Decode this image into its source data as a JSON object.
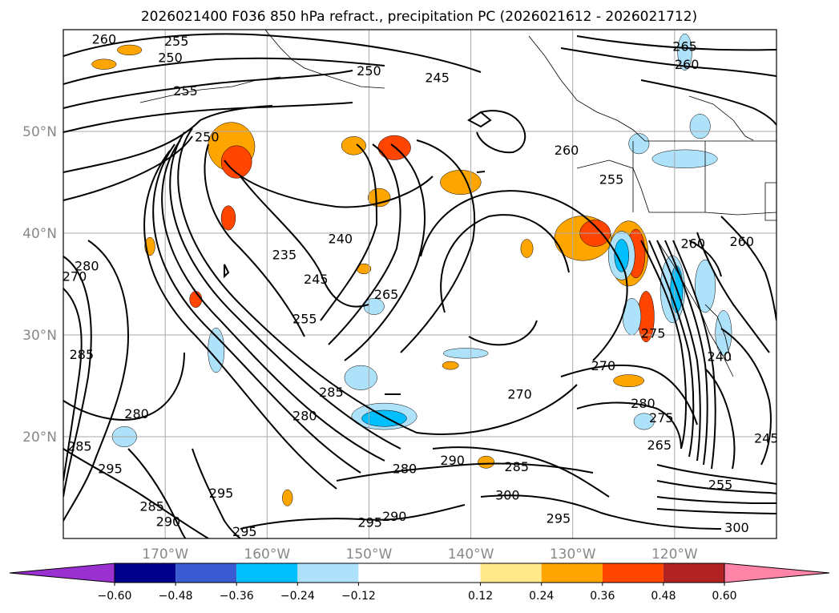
{
  "chart_data": {
    "type": "contour-map",
    "title": "2026021400 F036 850 hPa refract., precipitation PC (2026021612 - 2026021712)",
    "lon_range": [
      -180,
      -110
    ],
    "lat_range": [
      10,
      60
    ],
    "x_ticks": [
      {
        "lon": -170,
        "label": "170°W"
      },
      {
        "lon": -160,
        "label": "160°W"
      },
      {
        "lon": -150,
        "label": "150°W"
      },
      {
        "lon": -140,
        "label": "140°W"
      },
      {
        "lon": -130,
        "label": "130°W"
      },
      {
        "lon": -120,
        "label": "120°W"
      }
    ],
    "y_ticks": [
      {
        "lat": 20,
        "label": "20°N"
      },
      {
        "lat": 30,
        "label": "30°N"
      },
      {
        "lat": 40,
        "label": "40°N"
      },
      {
        "lat": 50,
        "label": "50°N"
      }
    ],
    "colorbar": {
      "orientation": "horizontal",
      "extend": "both",
      "boundaries": [
        -0.72,
        -0.6,
        -0.48,
        -0.36,
        -0.24,
        -0.12,
        0.12,
        0.24,
        0.36,
        0.48,
        0.6,
        0.72
      ],
      "colors": [
        "#9b30d0",
        "#00008b",
        "#3a5bd1",
        "#00bfff",
        "#aee2fb",
        "#ffffff",
        "#ffe98a",
        "#ffa500",
        "#ff4500",
        "#b22222",
        "#ff85a8"
      ],
      "tick_labels": [
        "−0.60",
        "−0.48",
        "−0.36",
        "−0.24",
        "−0.12",
        "0.12",
        "0.24",
        "0.36",
        "0.48",
        "0.60"
      ]
    },
    "contour_labels": [
      {
        "text": "260",
        "lon": -176.0,
        "lat": 59.1
      },
      {
        "text": "255",
        "lon": -168.9,
        "lat": 58.9
      },
      {
        "text": "250",
        "lon": -169.5,
        "lat": 57.3
      },
      {
        "text": "250",
        "lon": -150.0,
        "lat": 56.0
      },
      {
        "text": "245",
        "lon": -143.3,
        "lat": 55.3
      },
      {
        "text": "255",
        "lon": -168.0,
        "lat": 54.0
      },
      {
        "text": "250",
        "lon": -165.9,
        "lat": 49.5
      },
      {
        "text": "265",
        "lon": -119.0,
        "lat": 58.4
      },
      {
        "text": "260",
        "lon": -118.8,
        "lat": 56.6
      },
      {
        "text": "260",
        "lon": -130.6,
        "lat": 48.2
      },
      {
        "text": "255",
        "lon": -126.2,
        "lat": 45.3
      },
      {
        "text": "235",
        "lon": -158.3,
        "lat": 37.9
      },
      {
        "text": "240",
        "lon": -152.8,
        "lat": 39.5
      },
      {
        "text": "245",
        "lon": -155.2,
        "lat": 35.5
      },
      {
        "text": "265",
        "lon": -148.3,
        "lat": 34.0
      },
      {
        "text": "255",
        "lon": -156.3,
        "lat": 31.6
      },
      {
        "text": "260",
        "lon": -118.2,
        "lat": 39.0
      },
      {
        "text": "260",
        "lon": -113.4,
        "lat": 39.2
      },
      {
        "text": "270",
        "lon": -178.9,
        "lat": 35.8
      },
      {
        "text": "280",
        "lon": -177.7,
        "lat": 36.8
      },
      {
        "text": "285",
        "lon": -178.2,
        "lat": 28.1
      },
      {
        "text": "275",
        "lon": -122.1,
        "lat": 30.2
      },
      {
        "text": "240",
        "lon": -115.6,
        "lat": 27.9
      },
      {
        "text": "270",
        "lon": -127.0,
        "lat": 27.0
      },
      {
        "text": "270",
        "lon": -135.2,
        "lat": 24.2
      },
      {
        "text": "280",
        "lon": -123.1,
        "lat": 23.3
      },
      {
        "text": "275",
        "lon": -121.3,
        "lat": 21.9
      },
      {
        "text": "285",
        "lon": -153.7,
        "lat": 24.4
      },
      {
        "text": "280",
        "lon": -156.3,
        "lat": 22.1
      },
      {
        "text": "280",
        "lon": -172.8,
        "lat": 22.3
      },
      {
        "text": "285",
        "lon": -178.4,
        "lat": 19.1
      },
      {
        "text": "265",
        "lon": -121.5,
        "lat": 19.2
      },
      {
        "text": "245",
        "lon": -111.0,
        "lat": 19.9
      },
      {
        "text": "295",
        "lon": -175.4,
        "lat": 16.9
      },
      {
        "text": "295",
        "lon": -164.5,
        "lat": 14.5
      },
      {
        "text": "285",
        "lon": -171.3,
        "lat": 13.2
      },
      {
        "text": "280",
        "lon": -146.5,
        "lat": 16.9
      },
      {
        "text": "290",
        "lon": -141.8,
        "lat": 17.7
      },
      {
        "text": "285",
        "lon": -135.5,
        "lat": 17.1
      },
      {
        "text": "300",
        "lon": -136.4,
        "lat": 14.3
      },
      {
        "text": "290",
        "lon": -169.7,
        "lat": 11.7
      },
      {
        "text": "295",
        "lon": -162.2,
        "lat": 10.7
      },
      {
        "text": "295",
        "lon": -149.9,
        "lat": 11.6
      },
      {
        "text": "290",
        "lon": -147.5,
        "lat": 12.2
      },
      {
        "text": "295",
        "lon": -131.4,
        "lat": 12.0
      },
      {
        "text": "255",
        "lon": -115.5,
        "lat": 15.3
      },
      {
        "text": "300",
        "lon": -113.9,
        "lat": 11.1
      }
    ],
    "precip_patches": [
      {
        "lon": -163.5,
        "lat": 48.5,
        "rx": 2.3,
        "ry": 2.4,
        "level": 0.24
      },
      {
        "lon": -163.0,
        "lat": 47.0,
        "rx": 1.5,
        "ry": 1.6,
        "level": 0.36
      },
      {
        "lon": -147.5,
        "lat": 48.4,
        "rx": 1.6,
        "ry": 1.2,
        "level": 0.36
      },
      {
        "lon": -151.5,
        "lat": 48.6,
        "rx": 1.2,
        "ry": 0.9,
        "level": 0.24
      },
      {
        "lon": -149.0,
        "lat": 43.5,
        "rx": 1.1,
        "ry": 0.9,
        "level": 0.24
      },
      {
        "lon": -163.8,
        "lat": 41.5,
        "rx": 0.7,
        "ry": 1.2,
        "level": 0.36
      },
      {
        "lon": -141.0,
        "lat": 45.0,
        "rx": 2.0,
        "ry": 1.2,
        "level": 0.24
      },
      {
        "lon": -129.0,
        "lat": 39.5,
        "rx": 2.8,
        "ry": 2.2,
        "level": 0.24
      },
      {
        "lon": -127.8,
        "lat": 40.0,
        "rx": 1.5,
        "ry": 1.3,
        "level": 0.36
      },
      {
        "lon": -124.5,
        "lat": 38.0,
        "rx": 1.9,
        "ry": 3.2,
        "level": 0.24
      },
      {
        "lon": -123.8,
        "lat": 38.0,
        "rx": 0.9,
        "ry": 2.4,
        "level": 0.36
      },
      {
        "lon": -125.2,
        "lat": 37.8,
        "rx": 1.3,
        "ry": 2.4,
        "level": -0.24
      },
      {
        "lon": -125.2,
        "lat": 37.8,
        "rx": 0.7,
        "ry": 1.6,
        "level": -0.36
      },
      {
        "lon": -122.8,
        "lat": 31.8,
        "rx": 0.8,
        "ry": 2.5,
        "level": 0.36
      },
      {
        "lon": -124.2,
        "lat": 31.8,
        "rx": 0.9,
        "ry": 1.8,
        "level": -0.24
      },
      {
        "lon": -120.2,
        "lat": 34.5,
        "rx": 1.2,
        "ry": 3.3,
        "level": -0.24
      },
      {
        "lon": -119.8,
        "lat": 34.5,
        "rx": 0.6,
        "ry": 2.3,
        "level": -0.36
      },
      {
        "lon": -117.0,
        "lat": 34.8,
        "rx": 1.0,
        "ry": 2.6,
        "level": -0.24
      },
      {
        "lon": -115.2,
        "lat": 30.2,
        "rx": 0.8,
        "ry": 2.2,
        "level": -0.24
      },
      {
        "lon": -119.0,
        "lat": 47.3,
        "rx": 3.2,
        "ry": 0.9,
        "level": -0.24
      },
      {
        "lon": -123.5,
        "lat": 48.8,
        "rx": 1.0,
        "ry": 1.0,
        "level": -0.24
      },
      {
        "lon": -117.5,
        "lat": 50.5,
        "rx": 1.0,
        "ry": 1.2,
        "level": -0.24
      },
      {
        "lon": -119.0,
        "lat": 57.8,
        "rx": 0.7,
        "ry": 1.8,
        "level": -0.24
      },
      {
        "lon": -150.8,
        "lat": 25.8,
        "rx": 1.6,
        "ry": 1.2,
        "level": -0.24
      },
      {
        "lon": -148.5,
        "lat": 22.0,
        "rx": 3.2,
        "ry": 1.3,
        "level": -0.24
      },
      {
        "lon": -148.5,
        "lat": 21.8,
        "rx": 2.2,
        "ry": 0.8,
        "level": -0.36
      },
      {
        "lon": -149.5,
        "lat": 32.8,
        "rx": 1.0,
        "ry": 0.8,
        "level": -0.24
      },
      {
        "lon": -165.0,
        "lat": 28.5,
        "rx": 0.8,
        "ry": 2.2,
        "level": -0.24
      },
      {
        "lon": -140.5,
        "lat": 28.2,
        "rx": 2.2,
        "ry": 0.5,
        "level": -0.24
      },
      {
        "lon": -123.0,
        "lat": 21.5,
        "rx": 1.0,
        "ry": 0.8,
        "level": -0.24
      },
      {
        "lon": -174.0,
        "lat": 20.0,
        "rx": 1.2,
        "ry": 1.0,
        "level": -0.24
      },
      {
        "lon": -124.5,
        "lat": 25.5,
        "rx": 1.5,
        "ry": 0.6,
        "level": 0.24
      },
      {
        "lon": -167.0,
        "lat": 33.5,
        "rx": 0.6,
        "ry": 0.8,
        "level": 0.36
      },
      {
        "lon": -173.5,
        "lat": 58.0,
        "rx": 1.2,
        "ry": 0.5,
        "level": 0.24
      },
      {
        "lon": -176.0,
        "lat": 56.6,
        "rx": 1.2,
        "ry": 0.5,
        "level": 0.24
      },
      {
        "lon": -134.5,
        "lat": 38.5,
        "rx": 0.6,
        "ry": 0.9,
        "level": 0.24
      },
      {
        "lon": -171.5,
        "lat": 38.7,
        "rx": 0.5,
        "ry": 0.9,
        "level": 0.24
      },
      {
        "lon": -158.0,
        "lat": 14.0,
        "rx": 0.5,
        "ry": 0.8,
        "level": 0.24
      },
      {
        "lon": -138.5,
        "lat": 17.5,
        "rx": 0.8,
        "ry": 0.6,
        "level": 0.24
      },
      {
        "lon": -142.0,
        "lat": 27.0,
        "rx": 0.8,
        "ry": 0.4,
        "level": 0.24
      },
      {
        "lon": -150.5,
        "lat": 36.5,
        "rx": 0.7,
        "ry": 0.5,
        "level": 0.24
      }
    ]
  }
}
